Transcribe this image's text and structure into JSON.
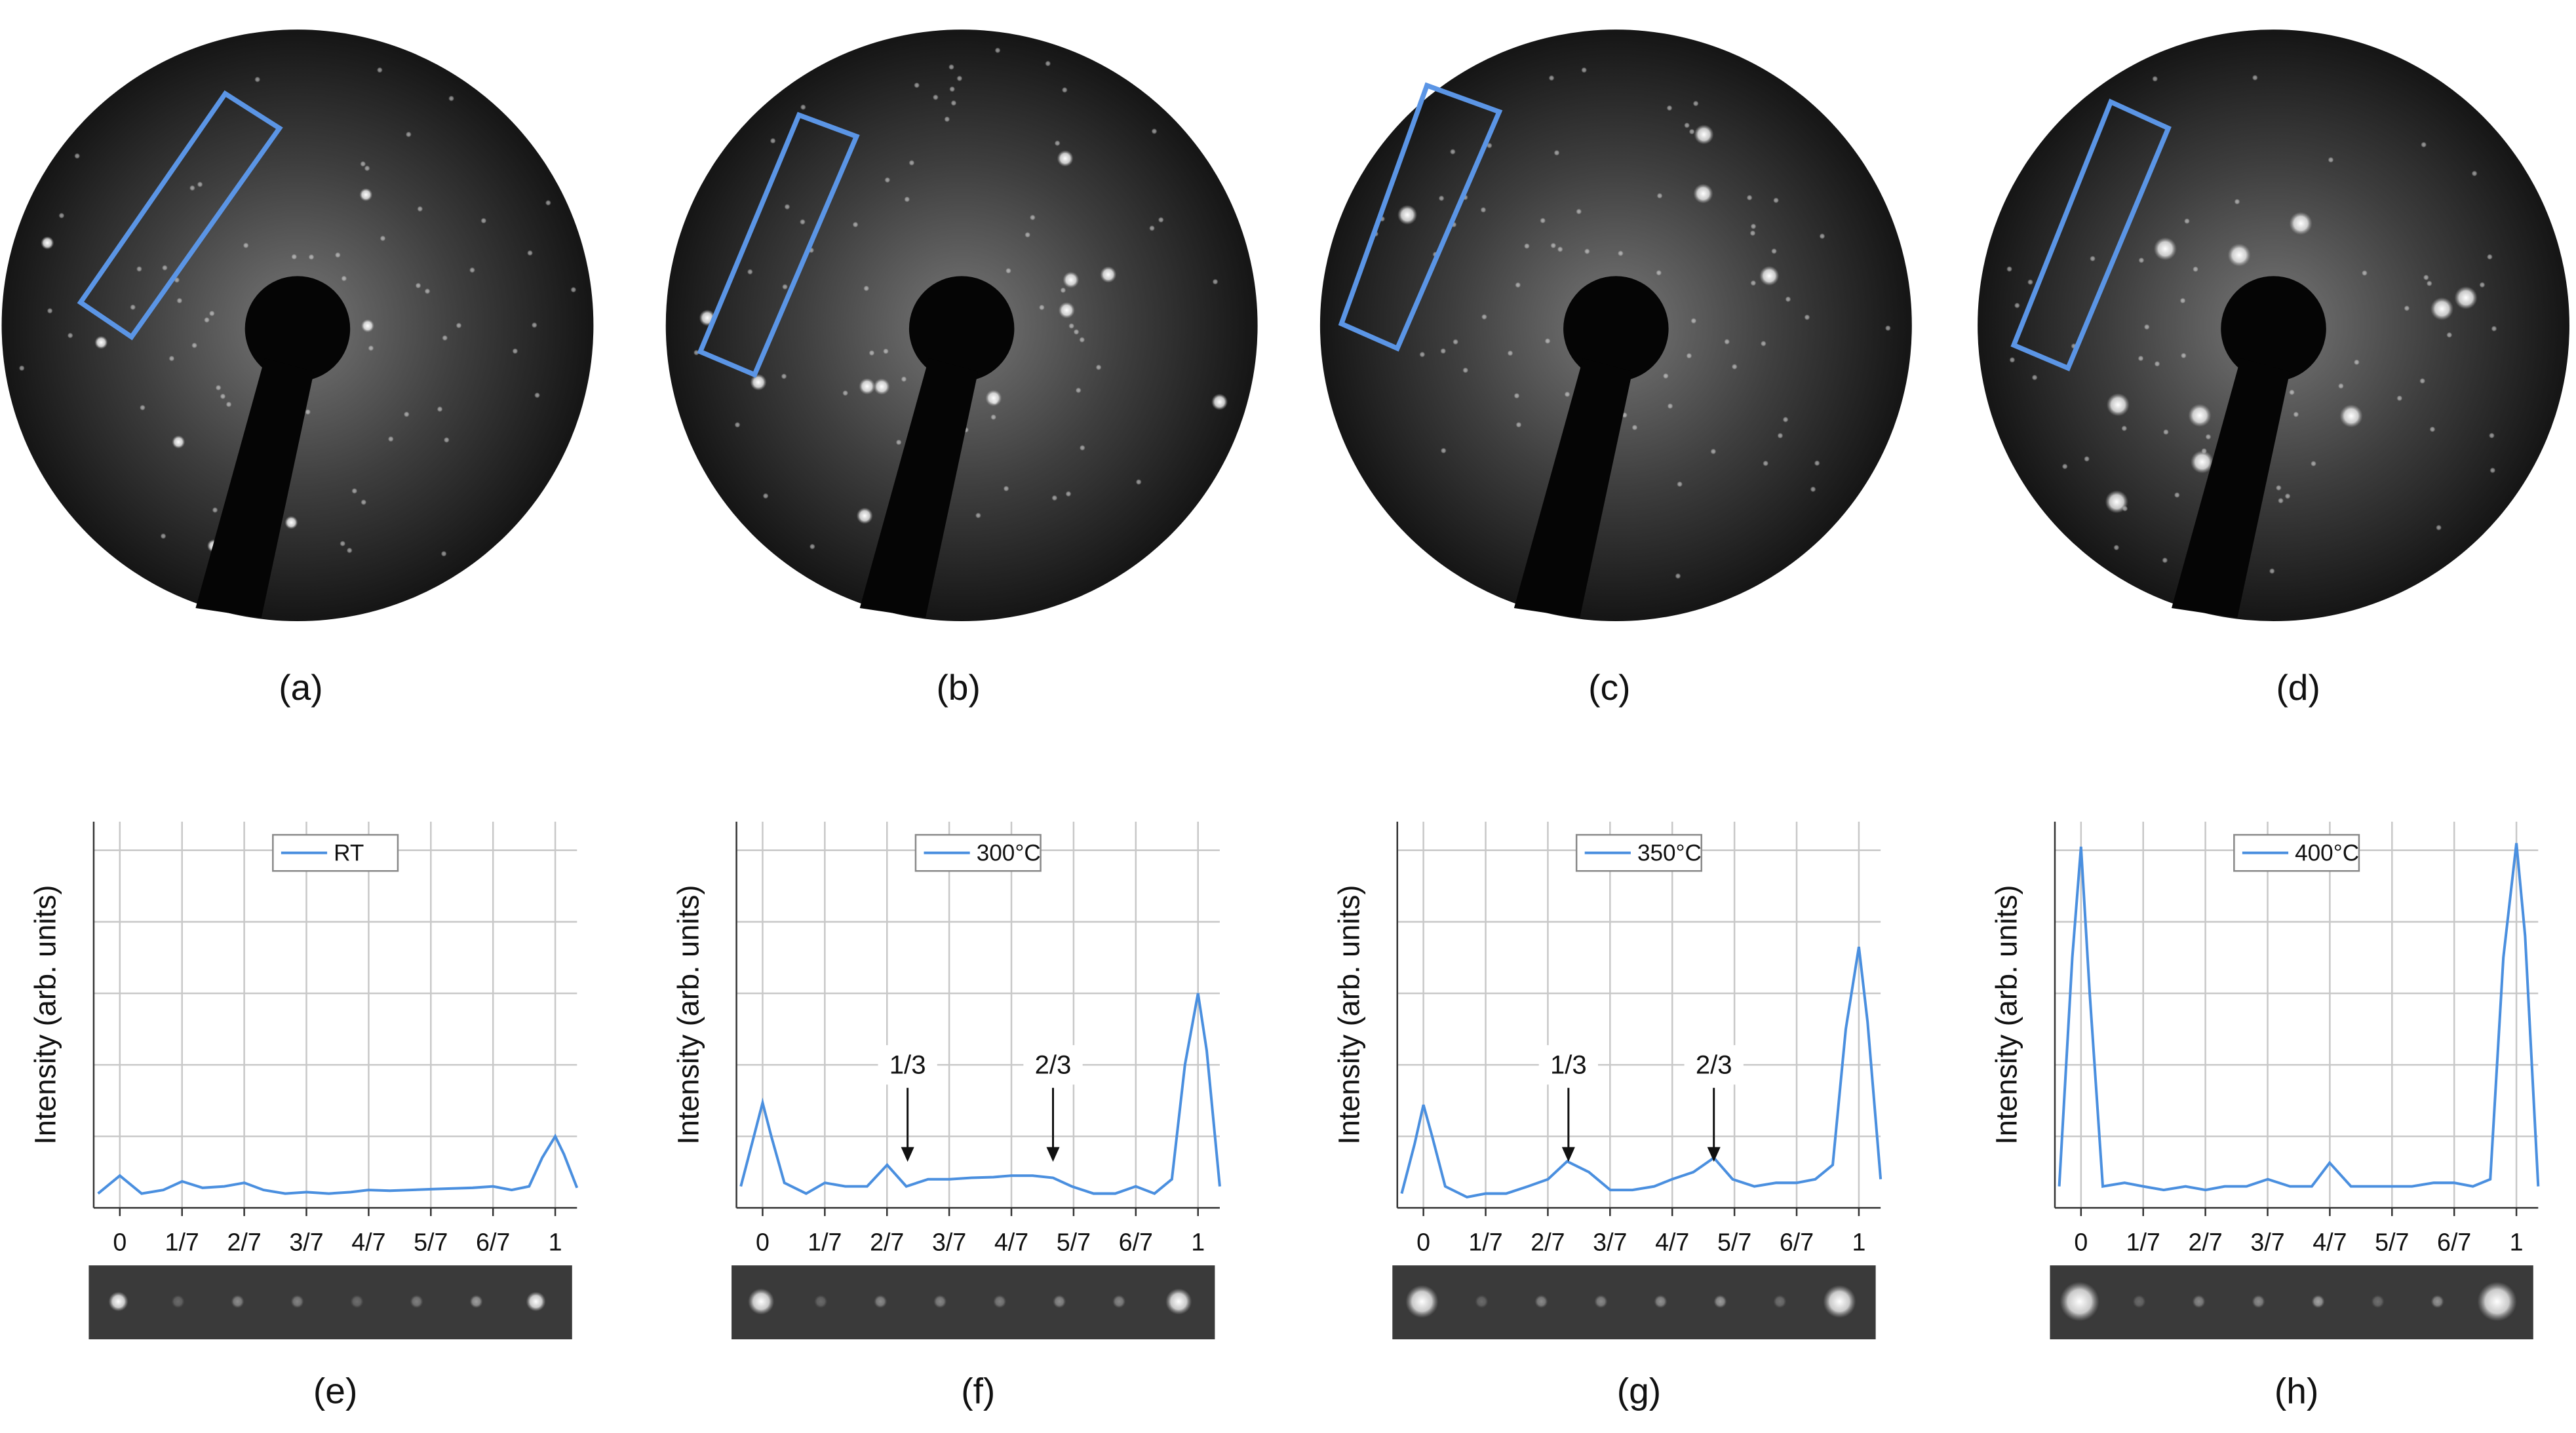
{
  "images": [
    {
      "label": "(a)"
    },
    {
      "label": "(b)"
    },
    {
      "label": "(c)"
    },
    {
      "label": "(d)"
    }
  ],
  "chart_data": [
    {
      "type": "line",
      "panel_label": "(e)",
      "ylabel": "Intensity (arb. units)",
      "x": [
        -0.05,
        -0.02,
        0,
        0.02,
        0.05,
        0.1,
        0.143,
        0.19,
        0.24,
        0.286,
        0.33,
        0.38,
        0.429,
        0.48,
        0.53,
        0.571,
        0.62,
        0.667,
        0.71,
        0.76,
        0.81,
        0.857,
        0.9,
        0.94,
        0.97,
        1.0,
        1.02,
        1.05
      ],
      "series": [
        {
          "name": "RT",
          "color": "#4a8fdf",
          "values": [
            0.2,
            0.35,
            0.45,
            0.35,
            0.2,
            0.25,
            0.37,
            0.28,
            0.3,
            0.35,
            0.25,
            0.2,
            0.22,
            0.2,
            0.22,
            0.25,
            0.24,
            0.25,
            0.26,
            0.27,
            0.28,
            0.3,
            0.25,
            0.3,
            0.7,
            1.0,
            0.75,
            0.28
          ]
        }
      ],
      "xlim": [
        -0.06,
        1.05
      ],
      "ylim": [
        0,
        5.4
      ],
      "xticks": [
        0,
        {
          "value": 0.142857,
          "label": "1/7"
        },
        {
          "value": 0.285714,
          "label": "2/7"
        },
        {
          "value": 0.428571,
          "label": "3/7"
        },
        {
          "value": 0.571429,
          "label": "4/7"
        },
        {
          "value": 0.714286,
          "label": "5/7"
        },
        {
          "value": 0.857143,
          "label": "6/7"
        },
        1
      ],
      "yticks": [
        1,
        2,
        3,
        4,
        5
      ],
      "ytick_labels": false,
      "grid": true,
      "annotations": []
    },
    {
      "type": "line",
      "panel_label": "(f)",
      "ylabel": "Intensity (arb. units)",
      "x": [
        -0.05,
        -0.02,
        0,
        0.02,
        0.05,
        0.1,
        0.143,
        0.19,
        0.24,
        0.286,
        0.33,
        0.38,
        0.429,
        0.48,
        0.53,
        0.571,
        0.62,
        0.667,
        0.71,
        0.76,
        0.81,
        0.857,
        0.9,
        0.94,
        0.97,
        1.0,
        1.02,
        1.05
      ],
      "series": [
        {
          "name": "300°C",
          "color": "#4a8fdf",
          "values": [
            0.3,
            1.0,
            1.47,
            1.0,
            0.35,
            0.2,
            0.35,
            0.3,
            0.3,
            0.6,
            0.3,
            0.4,
            0.4,
            0.42,
            0.43,
            0.45,
            0.45,
            0.42,
            0.3,
            0.2,
            0.2,
            0.3,
            0.2,
            0.4,
            2.0,
            3.0,
            2.2,
            0.3
          ]
        }
      ],
      "xlim": [
        -0.06,
        1.05
      ],
      "ylim": [
        0,
        5.4
      ],
      "xticks": [
        0,
        {
          "value": 0.142857,
          "label": "1/7"
        },
        {
          "value": 0.285714,
          "label": "2/7"
        },
        {
          "value": 0.428571,
          "label": "3/7"
        },
        {
          "value": 0.571429,
          "label": "4/7"
        },
        {
          "value": 0.714286,
          "label": "5/7"
        },
        {
          "value": 0.857143,
          "label": "6/7"
        },
        1
      ],
      "yticks": [
        1,
        2,
        3,
        4,
        5
      ],
      "ytick_labels": false,
      "grid": true,
      "annotations": [
        {
          "text": "1/3",
          "x": 0.333
        },
        {
          "text": "2/3",
          "x": 0.667
        }
      ]
    },
    {
      "type": "line",
      "panel_label": "(g)",
      "ylabel": "Intensity (arb. units)",
      "x": [
        -0.05,
        -0.02,
        0,
        0.02,
        0.05,
        0.1,
        0.143,
        0.19,
        0.24,
        0.286,
        0.33,
        0.38,
        0.429,
        0.48,
        0.53,
        0.571,
        0.62,
        0.667,
        0.71,
        0.76,
        0.81,
        0.857,
        0.9,
        0.94,
        0.97,
        1.0,
        1.02,
        1.05
      ],
      "series": [
        {
          "name": "350°C",
          "color": "#4a8fdf",
          "values": [
            0.2,
            0.9,
            1.44,
            1.0,
            0.3,
            0.15,
            0.2,
            0.2,
            0.3,
            0.4,
            0.65,
            0.5,
            0.25,
            0.25,
            0.3,
            0.4,
            0.5,
            0.7,
            0.4,
            0.3,
            0.35,
            0.35,
            0.4,
            0.6,
            2.5,
            3.65,
            2.6,
            0.4
          ]
        }
      ],
      "xlim": [
        -0.06,
        1.05
      ],
      "ylim": [
        0,
        5.4
      ],
      "xticks": [
        0,
        {
          "value": 0.142857,
          "label": "1/7"
        },
        {
          "value": 0.285714,
          "label": "2/7"
        },
        {
          "value": 0.428571,
          "label": "3/7"
        },
        {
          "value": 0.571429,
          "label": "4/7"
        },
        {
          "value": 0.714286,
          "label": "5/7"
        },
        {
          "value": 0.857143,
          "label": "6/7"
        },
        1
      ],
      "yticks": [
        1,
        2,
        3,
        4,
        5
      ],
      "ytick_labels": false,
      "grid": true,
      "annotations": [
        {
          "text": "1/3",
          "x": 0.333
        },
        {
          "text": "2/3",
          "x": 0.667
        }
      ]
    },
    {
      "type": "line",
      "panel_label": "(h)",
      "ylabel": "Intensity (arb. units)",
      "x": [
        -0.05,
        -0.02,
        0,
        0.02,
        0.05,
        0.1,
        0.143,
        0.19,
        0.24,
        0.286,
        0.33,
        0.38,
        0.429,
        0.48,
        0.53,
        0.571,
        0.62,
        0.667,
        0.71,
        0.76,
        0.81,
        0.857,
        0.9,
        0.94,
        0.97,
        1.0,
        1.02,
        1.05
      ],
      "series": [
        {
          "name": "400°C",
          "color": "#4a8fdf",
          "values": [
            0.3,
            3.5,
            5.05,
            3.0,
            0.3,
            0.35,
            0.3,
            0.25,
            0.3,
            0.25,
            0.3,
            0.3,
            0.4,
            0.3,
            0.3,
            0.63,
            0.3,
            0.3,
            0.3,
            0.3,
            0.35,
            0.35,
            0.3,
            0.4,
            3.5,
            5.1,
            3.8,
            0.3
          ]
        }
      ],
      "xlim": [
        -0.06,
        1.05
      ],
      "ylim": [
        0,
        5.4
      ],
      "xticks": [
        0,
        {
          "value": 0.142857,
          "label": "1/7"
        },
        {
          "value": 0.285714,
          "label": "2/7"
        },
        {
          "value": 0.428571,
          "label": "3/7"
        },
        {
          "value": 0.571429,
          "label": "4/7"
        },
        {
          "value": 0.714286,
          "label": "5/7"
        },
        {
          "value": 0.857143,
          "label": "6/7"
        },
        1
      ],
      "yticks": [
        1,
        2,
        3,
        4,
        5
      ],
      "ytick_labels": false,
      "grid": true,
      "annotations": []
    }
  ]
}
